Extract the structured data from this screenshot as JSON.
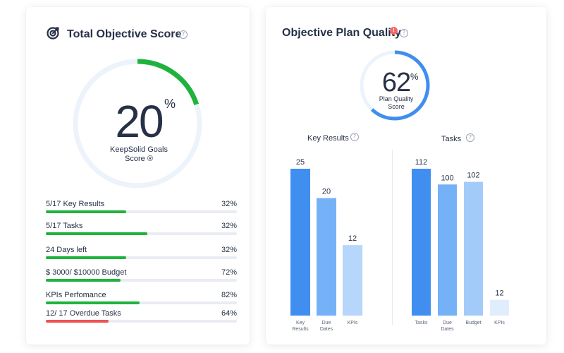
{
  "total_score": {
    "title": "Total Objective Score",
    "help": "?",
    "value": "20",
    "percent_sign": "%",
    "label_line1": "KeepSolid Goals",
    "label_line2": "Score ®",
    "progress": 0.2,
    "colors": {
      "ring_track": "#edf3fb",
      "ring_fill": "#1fb33e"
    },
    "rows": [
      {
        "label": "5/17 Key Results",
        "pct": "32%",
        "fill": 0.42,
        "color": "#1fb33e"
      },
      {
        "label": "5/17 Tasks",
        "pct": "32%",
        "fill": 0.53,
        "color": "#1fb33e"
      },
      {
        "label": "24 Days left",
        "pct": "32%",
        "fill": 0.42,
        "color": "#1fb33e"
      },
      {
        "label": "$ 3000/ $10000 Budget",
        "pct": "72%",
        "fill": 0.39,
        "color": "#1fb33e"
      },
      {
        "label": "KPIs Perfomance",
        "pct": "82%",
        "fill": 0.49,
        "color": "#1fb33e"
      },
      {
        "label": "12/ 17 Overdue Tasks",
        "pct": "64%",
        "fill": 0.33,
        "color": "#ee5253"
      }
    ]
  },
  "plan_quality": {
    "title": "Objective Plan Quality",
    "badge": "!",
    "help": "?",
    "value": "62",
    "percent_sign": "%",
    "label_line1": "Plan Quality",
    "label_line2": "Score",
    "progress": 0.62,
    "colors": {
      "ring_track": "#edf3fb",
      "ring_fill": "#3f8ef0"
    }
  },
  "chart_data": [
    {
      "type": "bar",
      "title": "Key Results",
      "categories": [
        "Key Results",
        "Due Dates",
        "KPIs"
      ],
      "values": [
        25,
        20,
        12
      ],
      "colors": [
        "#3f8ef0",
        "#74b1f7",
        "#b6d6fb"
      ],
      "ylim": [
        0,
        25
      ]
    },
    {
      "type": "bar",
      "title": "Tasks",
      "categories": [
        "Tasks",
        "Due Dates",
        "Budget",
        "KPIs"
      ],
      "values": [
        112,
        100,
        102,
        12
      ],
      "colors": [
        "#3f8ef0",
        "#74b1f7",
        "#a3cbf9",
        "#e0edfd"
      ],
      "ylim": [
        0,
        112
      ]
    }
  ]
}
